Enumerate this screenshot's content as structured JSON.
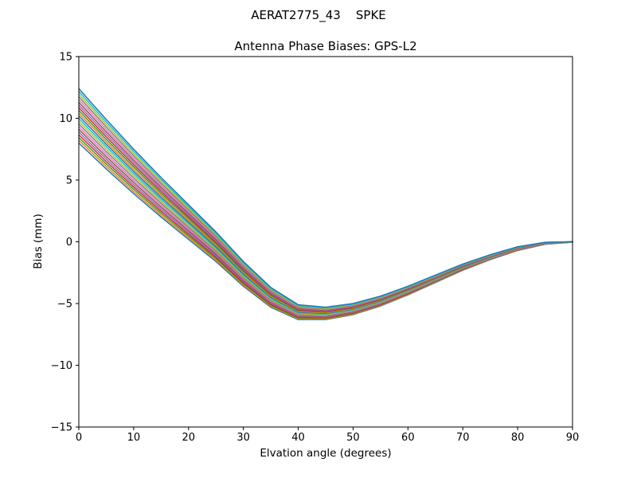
{
  "figure": {
    "suptitle": "AERAT2775_43    SPKE",
    "background": "#ffffff",
    "frame_color": "#000000"
  },
  "chart_data": {
    "type": "line",
    "suptitle": "AERAT2775_43    SPKE",
    "title": "Antenna Phase Biases: GPS-L2",
    "xlabel": "Elvation angle (degrees)",
    "ylabel": "Bias (mm)",
    "xlim": [
      0,
      90
    ],
    "ylim": [
      -15,
      15
    ],
    "xticks": [
      0,
      10,
      20,
      30,
      40,
      50,
      60,
      70,
      80,
      90
    ],
    "xtick_labels": [
      "0",
      "10",
      "20",
      "30",
      "40",
      "50",
      "60",
      "70",
      "80",
      "90"
    ],
    "yticks": [
      -15,
      -10,
      -5,
      0,
      5,
      10,
      15
    ],
    "ytick_labels": [
      "−15",
      "−10",
      "−5",
      "0",
      "5",
      "10",
      "15"
    ],
    "grid": false,
    "legend": "none",
    "x": [
      0,
      5,
      10,
      15,
      20,
      25,
      30,
      35,
      40,
      45,
      50,
      55,
      60,
      65,
      70,
      75,
      80,
      85,
      90
    ],
    "series": [
      {
        "color": "#1f77b4",
        "values": [
          8.0,
          5.9,
          3.9,
          2.0,
          0.2,
          -1.6,
          -3.6,
          -5.3,
          -6.3,
          -6.3,
          -5.9,
          -5.2,
          -4.3,
          -3.3,
          -2.3,
          -1.45,
          -0.7,
          -0.2,
          -0.03
        ]
      },
      {
        "color": "#ff7f0e",
        "values": [
          8.22,
          6.1,
          4.08,
          2.16,
          0.34,
          -1.48,
          -3.5,
          -5.22,
          -6.24,
          -6.25,
          -5.86,
          -5.16,
          -4.27,
          -3.27,
          -2.28,
          -1.43,
          -0.69,
          -0.19,
          -0.03
        ]
      },
      {
        "color": "#2ca02c",
        "values": [
          8.44,
          6.3,
          4.26,
          2.32,
          0.48,
          -1.36,
          -3.4,
          -5.14,
          -6.18,
          -6.2,
          -5.81,
          -5.12,
          -4.23,
          -3.24,
          -2.25,
          -1.41,
          -0.67,
          -0.18,
          -0.03
        ]
      },
      {
        "color": "#d62728",
        "values": [
          8.66,
          6.5,
          4.44,
          2.48,
          0.62,
          -1.24,
          -3.3,
          -5.06,
          -6.12,
          -6.15,
          -5.77,
          -5.08,
          -4.2,
          -3.21,
          -2.23,
          -1.39,
          -0.66,
          -0.18,
          -0.02
        ]
      },
      {
        "color": "#9467bd",
        "values": [
          8.88,
          6.7,
          4.62,
          2.64,
          0.76,
          -1.12,
          -3.2,
          -4.98,
          -6.06,
          -6.1,
          -5.72,
          -5.04,
          -4.16,
          -3.18,
          -2.2,
          -1.37,
          -0.64,
          -0.17,
          -0.02
        ]
      },
      {
        "color": "#8c564b",
        "values": [
          9.1,
          6.9,
          4.8,
          2.8,
          0.9,
          -1.0,
          -3.1,
          -4.9,
          -6.0,
          -6.05,
          -5.68,
          -5.0,
          -4.13,
          -3.15,
          -2.18,
          -1.35,
          -0.63,
          -0.16,
          -0.02
        ]
      },
      {
        "color": "#e377c2",
        "values": [
          9.32,
          7.1,
          4.98,
          2.96,
          1.04,
          -0.88,
          -3.0,
          -4.82,
          -5.94,
          -6.0,
          -5.63,
          -4.96,
          -4.09,
          -3.12,
          -2.15,
          -1.33,
          -0.61,
          -0.15,
          -0.02
        ]
      },
      {
        "color": "#7f7f7f",
        "values": [
          9.54,
          7.3,
          5.16,
          3.12,
          1.18,
          -0.76,
          -2.9,
          -4.74,
          -5.88,
          -5.95,
          -5.59,
          -4.92,
          -4.06,
          -3.09,
          -2.13,
          -1.31,
          -0.6,
          -0.14,
          -0.02
        ]
      },
      {
        "color": "#bcbd22",
        "values": [
          9.76,
          7.5,
          5.34,
          3.28,
          1.32,
          -0.64,
          -2.8,
          -4.66,
          -5.82,
          -5.9,
          -5.54,
          -4.88,
          -4.02,
          -3.06,
          -2.1,
          -1.29,
          -0.58,
          -0.14,
          -0.01
        ]
      },
      {
        "color": "#17becf",
        "values": [
          9.98,
          7.7,
          5.52,
          3.44,
          1.46,
          -0.52,
          -2.7,
          -4.58,
          -5.76,
          -5.85,
          -5.5,
          -4.84,
          -3.99,
          -3.03,
          -2.08,
          -1.27,
          -0.57,
          -0.13,
          -0.01
        ]
      },
      {
        "color": "#1f77b4",
        "values": [
          10.2,
          7.9,
          5.7,
          3.6,
          1.6,
          -0.4,
          -2.6,
          -4.5,
          -5.7,
          -5.8,
          -5.45,
          -4.8,
          -3.95,
          -3.0,
          -2.05,
          -1.25,
          -0.55,
          -0.12,
          -0.01
        ]
      },
      {
        "color": "#ff7f0e",
        "values": [
          10.42,
          8.1,
          5.88,
          3.76,
          1.74,
          -0.28,
          -2.5,
          -4.42,
          -5.64,
          -5.75,
          -5.41,
          -4.76,
          -3.92,
          -2.97,
          -2.03,
          -1.23,
          -0.54,
          -0.11,
          -0.01
        ]
      },
      {
        "color": "#2ca02c",
        "values": [
          10.64,
          8.3,
          6.06,
          3.92,
          1.88,
          -0.16,
          -2.4,
          -4.34,
          -5.58,
          -5.7,
          -5.36,
          -4.72,
          -3.88,
          -2.94,
          -2.0,
          -1.21,
          -0.52,
          -0.1,
          -0.01
        ]
      },
      {
        "color": "#d62728",
        "values": [
          10.86,
          8.5,
          6.24,
          4.08,
          2.02,
          -0.04,
          -2.3,
          -4.26,
          -5.52,
          -5.65,
          -5.32,
          -4.68,
          -3.85,
          -2.91,
          -1.98,
          -1.19,
          -0.51,
          -0.1,
          0.0
        ]
      },
      {
        "color": "#9467bd",
        "values": [
          11.08,
          8.7,
          6.42,
          4.24,
          2.16,
          0.08,
          -2.2,
          -4.18,
          -5.46,
          -5.6,
          -5.27,
          -4.64,
          -3.81,
          -2.88,
          -1.95,
          -1.17,
          -0.49,
          -0.09,
          0.0
        ]
      },
      {
        "color": "#8c564b",
        "values": [
          11.3,
          8.9,
          6.6,
          4.4,
          2.3,
          0.2,
          -2.1,
          -4.1,
          -5.4,
          -5.55,
          -5.23,
          -4.6,
          -3.78,
          -2.85,
          -1.93,
          -1.15,
          -0.48,
          -0.08,
          0.0
        ]
      },
      {
        "color": "#e377c2",
        "values": [
          11.52,
          9.1,
          6.78,
          4.56,
          2.44,
          0.32,
          -2.0,
          -4.02,
          -5.34,
          -5.5,
          -5.18,
          -4.56,
          -3.74,
          -2.82,
          -1.9,
          -1.13,
          -0.46,
          -0.07,
          0.0
        ]
      },
      {
        "color": "#7f7f7f",
        "values": [
          11.74,
          9.3,
          6.96,
          4.72,
          2.58,
          0.44,
          -1.9,
          -3.94,
          -5.28,
          -5.45,
          -5.14,
          -4.52,
          -3.71,
          -2.79,
          -1.88,
          -1.11,
          -0.45,
          -0.06,
          0.0
        ]
      },
      {
        "color": "#bcbd22",
        "values": [
          11.96,
          9.5,
          7.14,
          4.88,
          2.72,
          0.56,
          -1.8,
          -3.86,
          -5.22,
          -5.4,
          -5.09,
          -4.48,
          -3.67,
          -2.76,
          -1.85,
          -1.09,
          -0.43,
          -0.06,
          0.0
        ]
      },
      {
        "color": "#17becf",
        "values": [
          12.18,
          9.7,
          7.32,
          5.04,
          2.86,
          0.68,
          -1.7,
          -3.78,
          -5.16,
          -5.35,
          -5.05,
          -4.44,
          -3.64,
          -2.73,
          -1.83,
          -1.07,
          -0.42,
          -0.05,
          0.0
        ]
      },
      {
        "color": "#1f77b4",
        "values": [
          12.4,
          9.9,
          7.5,
          5.2,
          3.0,
          0.8,
          -1.6,
          -3.7,
          -5.1,
          -5.3,
          -5.0,
          -4.4,
          -3.6,
          -2.7,
          -1.8,
          -1.05,
          -0.4,
          -0.04,
          0.01
        ]
      }
    ]
  }
}
